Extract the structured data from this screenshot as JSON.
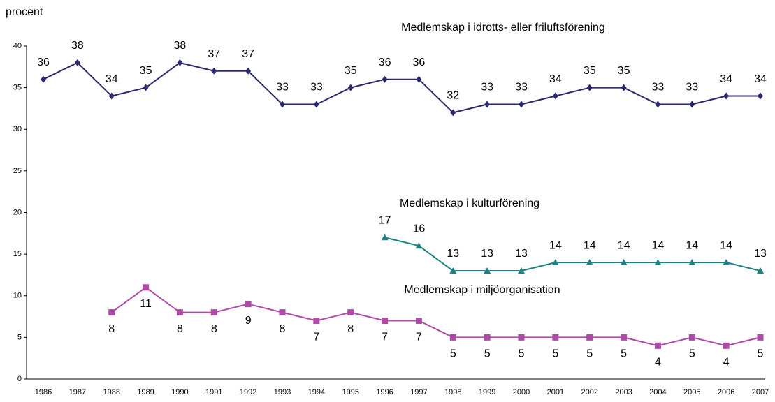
{
  "chart_data": {
    "type": "line",
    "y_label": "procent",
    "categories": [
      "1986",
      "1987",
      "1988",
      "1989",
      "1990",
      "1991",
      "1992",
      "1993",
      "1994",
      "1995",
      "1996",
      "1997",
      "1998",
      "1999",
      "2000",
      "2001",
      "2002",
      "2003",
      "2004",
      "2005",
      "2006",
      "2007"
    ],
    "series": [
      {
        "name": "Medlemskap i idrotts- eller friluftsförening",
        "color": "#2b2a6f",
        "marker": "diamond",
        "label_pos": "above",
        "values": [
          36,
          38,
          34,
          35,
          38,
          37,
          37,
          33,
          33,
          35,
          36,
          36,
          32,
          33,
          33,
          34,
          35,
          35,
          33,
          33,
          34,
          34
        ]
      },
      {
        "name": "Medlemskap i kulturförening",
        "color": "#1f8282",
        "marker": "triangle",
        "label_pos": "above",
        "values": [
          null,
          null,
          null,
          null,
          null,
          null,
          null,
          null,
          null,
          null,
          17,
          16,
          13,
          13,
          13,
          14,
          14,
          14,
          14,
          14,
          14,
          13
        ]
      },
      {
        "name": "Medlemskap i miljöorganisation",
        "color": "#b04aa8",
        "marker": "square",
        "label_pos": "below",
        "values": [
          null,
          null,
          8,
          11,
          8,
          8,
          9,
          8,
          7,
          8,
          7,
          7,
          5,
          5,
          5,
          5,
          5,
          5,
          4,
          5,
          4,
          5
        ]
      }
    ],
    "ylim": [
      0,
      40
    ],
    "yticks": [
      0,
      5,
      10,
      15,
      20,
      25,
      30,
      35,
      40
    ],
    "grid": false
  }
}
